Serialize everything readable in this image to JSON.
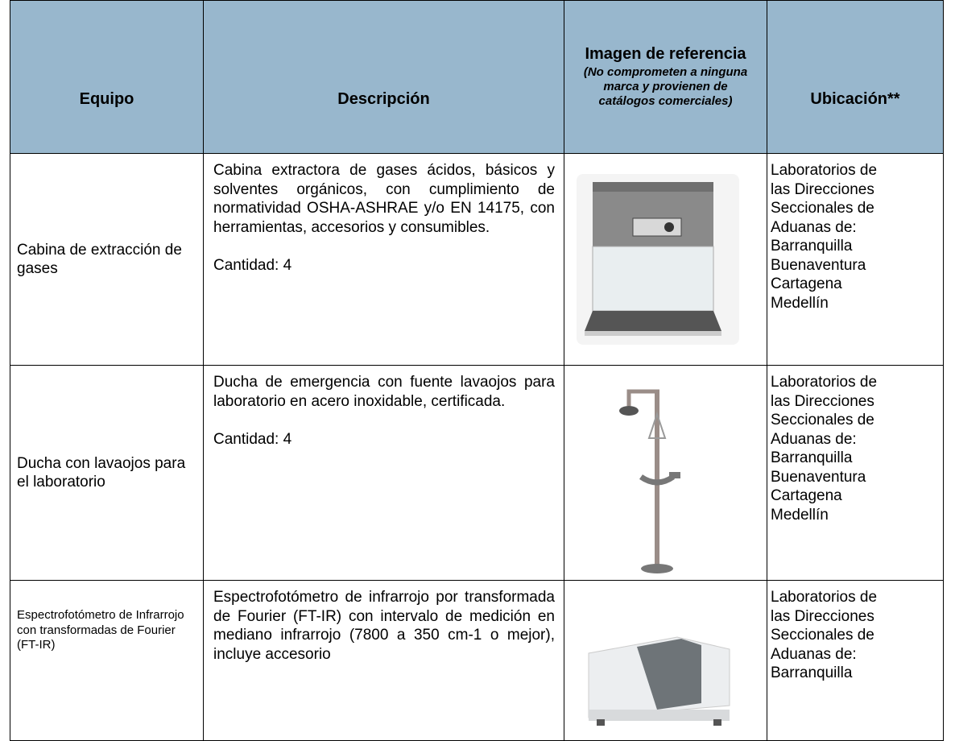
{
  "header": {
    "col1": "Equipo",
    "col2": "Descripción",
    "col3_title": "Imagen de referencia",
    "col3_note": "(No comprometen a ninguna marca y provienen de catálogos comerciales)",
    "col4": "Ubicación**"
  },
  "rows": [
    {
      "equipo": "Cabina de extracción de gases",
      "descripcion": "Cabina extractora de gases ácidos, básicos y solventes orgánicos, con cumplimiento de normatividad OSHA-ASHRAE y/o EN 14175, con herramientas, accesorios y consumibles.",
      "cantidad": "Cantidad: 4",
      "ubicacion": [
        "Laboratorios de",
        "las Direcciones",
        "Seccionales de",
        "Aduanas de:",
        "Barranquilla",
        "Buenaventura",
        "Cartagena",
        "Medellín"
      ]
    },
    {
      "equipo": "Ducha con lavaojos para el laboratorio",
      "descripcion": "Ducha de emergencia con fuente lavaojos para laboratorio en acero inoxidable, certificada.",
      "cantidad": "Cantidad: 4",
      "ubicacion": [
        "Laboratorios de",
        "las Direcciones",
        "Seccionales de",
        "Aduanas de:",
        "Barranquilla",
        "Buenaventura",
        "Cartagena",
        "Medellín"
      ]
    },
    {
      "equipo": "Espectrofotómetro de Infrarrojo con transformadas de Fourier (FT-IR)",
      "descripcion": "Espectrofotómetro de infrarrojo por transformada de Fourier (FT-IR) con intervalo de medición en mediano infrarrojo (7800 a 350 cm-1 o mejor), incluye accesorio",
      "ubicacion": [
        "Laboratorios de",
        "las Direcciones",
        "Seccionales de",
        "Aduanas de:",
        "Barranquilla"
      ]
    }
  ]
}
